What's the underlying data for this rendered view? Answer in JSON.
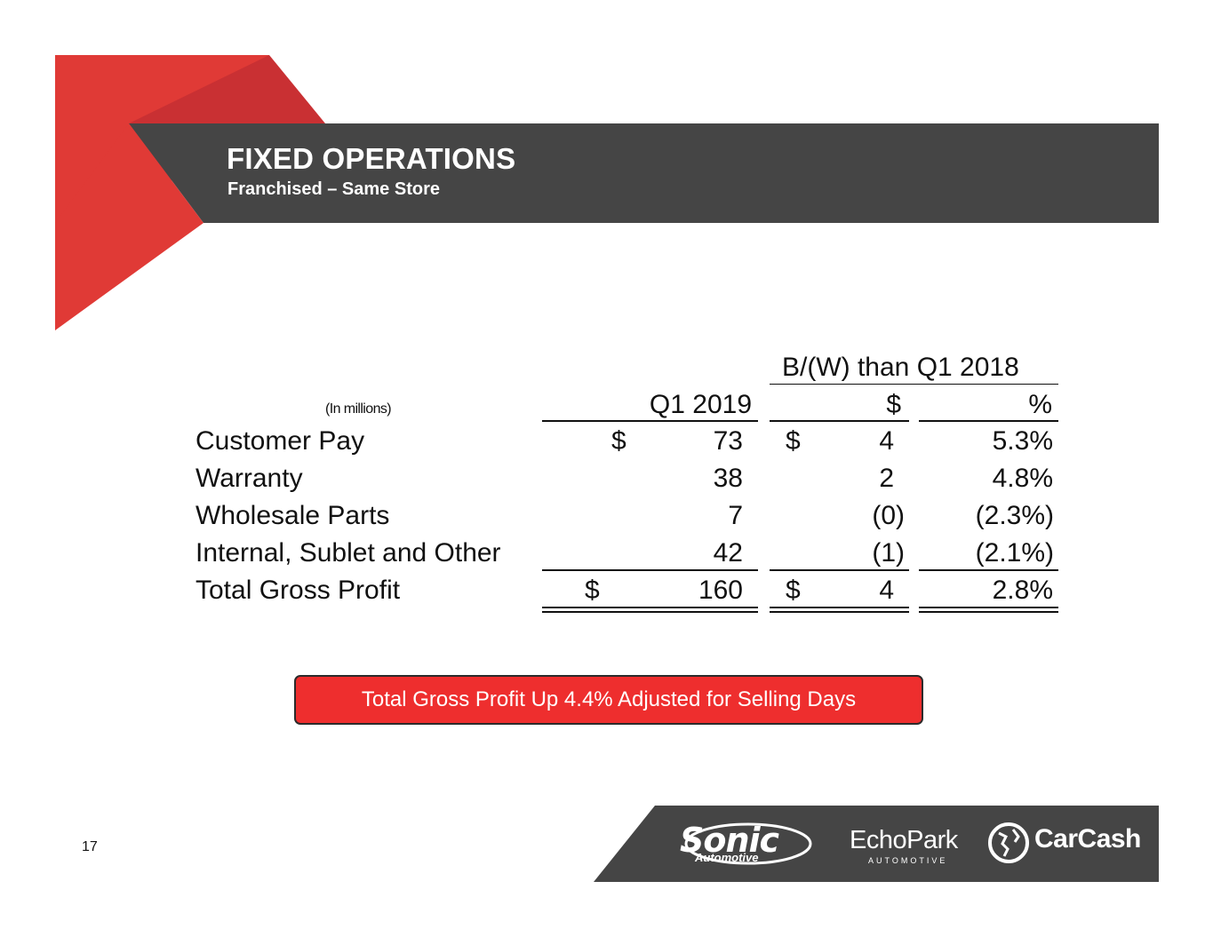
{
  "header": {
    "title": "FIXED OPERATIONS",
    "subtitle": "Franchised – Same Store"
  },
  "table": {
    "group_header": "B/(W) than Q1 2018",
    "units_label": "(In millions)",
    "columns": {
      "q1_2019": "Q1 2019",
      "dollar_change": "$",
      "pct_change": "%"
    },
    "rows": [
      {
        "label": "Customer Pay",
        "cur": "$",
        "q1_2019": "73",
        "cur2": "$",
        "dollar_change": "4",
        "pct_change": "5.3%"
      },
      {
        "label": "Warranty",
        "cur": "",
        "q1_2019": "38",
        "cur2": "",
        "dollar_change": "2",
        "pct_change": "4.8%"
      },
      {
        "label": "Wholesale Parts",
        "cur": "",
        "q1_2019": "7",
        "cur2": "",
        "dollar_change": "(0)",
        "pct_change": "(2.3%)"
      },
      {
        "label": "Internal, Sublet and Other",
        "cur": "",
        "q1_2019": "42",
        "cur2": "",
        "dollar_change": "(1)",
        "pct_change": "(2.1%)"
      }
    ],
    "total": {
      "label": "Total Gross Profit",
      "cur": "$",
      "q1_2019": "160",
      "cur2": "$",
      "dollar_change": "4",
      "pct_change": "2.8%"
    }
  },
  "callout": "Total Gross Profit Up 4.4% Adjusted for Selling Days",
  "page_number": "17",
  "footer": {
    "logos": [
      {
        "name": "Sonic",
        "sub": "Automotive"
      },
      {
        "name": "EchoPark",
        "sub": "AUTOMOTIVE"
      },
      {
        "name": "CarCash",
        "sub": ""
      }
    ]
  },
  "colors": {
    "accent_red": "#e03a36",
    "dark_band": "#454545",
    "callout_red": "#ee2e2e"
  }
}
